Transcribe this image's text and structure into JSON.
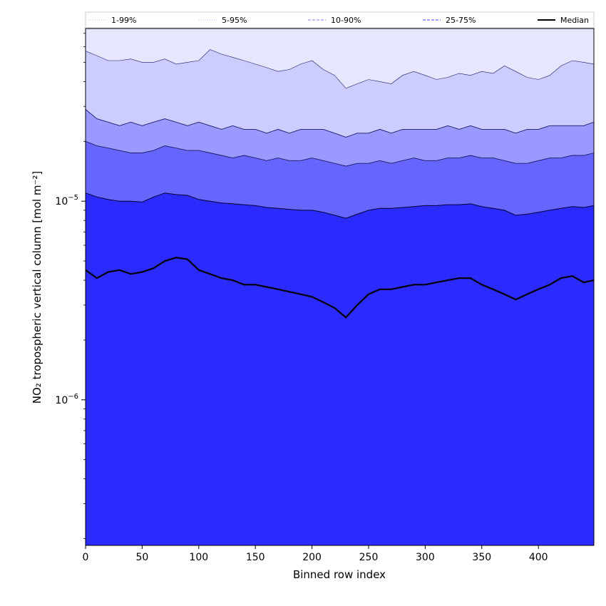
{
  "chart_data": {
    "type": "area",
    "xlabel": "Binned row index",
    "ylabel": "NO₂ tropospheric vertical column [mol m⁻²]",
    "xlim": [
      0,
      449
    ],
    "ylim": [
      1.85e-07,
      7.4e-05
    ],
    "yscale": "log",
    "grid": false,
    "legend_position": "top",
    "x_ticks": [
      0,
      50,
      100,
      150,
      200,
      250,
      300,
      350,
      400
    ],
    "x_tick_labels": [
      "0",
      "50",
      "100",
      "150",
      "200",
      "250",
      "300",
      "350",
      "400"
    ],
    "y_ticks": [
      1e-06,
      1e-05
    ],
    "y_tick_labels": [
      {
        "base": "10",
        "exp": "−6"
      },
      {
        "base": "10",
        "exp": "−5"
      }
    ],
    "legend": [
      {
        "label": "1-99%",
        "color": "#e6e6ff",
        "style": "dotted"
      },
      {
        "label": "5-95%",
        "color": "#ccccff",
        "style": "dotted"
      },
      {
        "label": "10-90%",
        "color": "#9999ff",
        "style": "dashed"
      },
      {
        "label": "25-75%",
        "color": "#6666ff",
        "style": "dashed"
      },
      {
        "label": "Median",
        "color": "#000000",
        "style": "solid"
      }
    ],
    "x": [
      0,
      10,
      20,
      30,
      40,
      50,
      60,
      70,
      80,
      90,
      100,
      110,
      120,
      130,
      140,
      150,
      160,
      170,
      180,
      190,
      200,
      210,
      220,
      230,
      240,
      250,
      260,
      270,
      280,
      290,
      300,
      310,
      320,
      330,
      340,
      350,
      360,
      370,
      380,
      390,
      400,
      410,
      420,
      430,
      440,
      449
    ],
    "series": [
      {
        "name": "1-99%",
        "color": "#e6e6ff",
        "values_low": [
          1.85e-07,
          1.85e-07,
          1.85e-07,
          1.85e-07,
          1.85e-07,
          1.85e-07,
          1.85e-07,
          1.85e-07,
          1.85e-07,
          1.85e-07,
          1.85e-07,
          1.85e-07,
          1.85e-07,
          1.85e-07,
          1.85e-07,
          1.85e-07,
          1.85e-07,
          1.85e-07,
          1.85e-07,
          1.85e-07,
          1.85e-07,
          1.85e-07,
          1.85e-07,
          1.85e-07,
          1.85e-07,
          1.85e-07,
          1.85e-07,
          1.85e-07,
          1.85e-07,
          1.85e-07,
          1.85e-07,
          1.85e-07,
          1.85e-07,
          1.85e-07,
          1.85e-07,
          1.85e-07,
          1.85e-07,
          1.85e-07,
          1.85e-07,
          1.85e-07,
          1.85e-07,
          1.85e-07,
          1.85e-07,
          1.85e-07,
          1.85e-07,
          1.85e-07
        ],
        "values_high": [
          7.4e-05,
          7.4e-05,
          7.4e-05,
          7.4e-05,
          7.4e-05,
          7.4e-05,
          7.4e-05,
          7.4e-05,
          7.4e-05,
          7.4e-05,
          7.4e-05,
          7.4e-05,
          7.4e-05,
          7.4e-05,
          7.4e-05,
          7.4e-05,
          7.4e-05,
          7.4e-05,
          7.4e-05,
          7.4e-05,
          7.4e-05,
          7.4e-05,
          7.4e-05,
          7.4e-05,
          7.4e-05,
          7.4e-05,
          7.4e-05,
          7.4e-05,
          7.4e-05,
          7.4e-05,
          7.4e-05,
          7.4e-05,
          7.4e-05,
          7.4e-05,
          7.4e-05,
          7.4e-05,
          7.4e-05,
          7.4e-05,
          7.4e-05,
          7.4e-05,
          7.4e-05,
          7.4e-05,
          7.4e-05,
          7.4e-05,
          7.4e-05,
          7.4e-05
        ]
      },
      {
        "name": "5-95%",
        "color": "#ccccff",
        "values_low": [
          1.85e-07,
          1.85e-07,
          1.85e-07,
          1.85e-07,
          1.85e-07,
          1.85e-07,
          1.85e-07,
          1.85e-07,
          1.85e-07,
          1.85e-07,
          1.85e-07,
          1.85e-07,
          1.85e-07,
          1.85e-07,
          1.85e-07,
          1.85e-07,
          1.85e-07,
          1.85e-07,
          1.85e-07,
          1.85e-07,
          1.85e-07,
          1.85e-07,
          1.85e-07,
          1.85e-07,
          1.85e-07,
          1.85e-07,
          1.85e-07,
          1.85e-07,
          1.85e-07,
          1.85e-07,
          1.85e-07,
          1.85e-07,
          1.85e-07,
          1.85e-07,
          1.85e-07,
          1.85e-07,
          1.85e-07,
          1.85e-07,
          1.85e-07,
          1.85e-07,
          1.85e-07,
          1.85e-07,
          1.85e-07,
          1.85e-07,
          1.85e-07,
          1.85e-07
        ],
        "values_high": [
          5.7e-05,
          5.4e-05,
          5.1e-05,
          5.1e-05,
          5.2e-05,
          5e-05,
          5e-05,
          5.2e-05,
          4.9e-05,
          5e-05,
          5.1e-05,
          5.8e-05,
          5.5e-05,
          5.3e-05,
          5.1e-05,
          4.9e-05,
          4.7e-05,
          4.5e-05,
          4.6e-05,
          4.9e-05,
          5.1e-05,
          4.6e-05,
          4.3e-05,
          3.7e-05,
          3.9e-05,
          4.1e-05,
          4e-05,
          3.9e-05,
          4.3e-05,
          4.5e-05,
          4.3e-05,
          4.1e-05,
          4.2e-05,
          4.4e-05,
          4.3e-05,
          4.5e-05,
          4.4e-05,
          4.8e-05,
          4.5e-05,
          4.2e-05,
          4.1e-05,
          4.3e-05,
          4.8e-05,
          5.1e-05,
          5e-05,
          4.9e-05
        ]
      },
      {
        "name": "10-90%",
        "color": "#9999ff",
        "values_low": [
          1.85e-07,
          1.85e-07,
          1.85e-07,
          1.85e-07,
          1.85e-07,
          1.85e-07,
          1.85e-07,
          1.85e-07,
          1.85e-07,
          1.85e-07,
          1.85e-07,
          1.85e-07,
          1.85e-07,
          1.85e-07,
          1.85e-07,
          1.85e-07,
          1.85e-07,
          1.85e-07,
          1.85e-07,
          1.85e-07,
          1.85e-07,
          1.85e-07,
          1.85e-07,
          1.85e-07,
          1.85e-07,
          1.85e-07,
          1.85e-07,
          1.85e-07,
          1.85e-07,
          1.85e-07,
          1.85e-07,
          1.85e-07,
          1.85e-07,
          1.85e-07,
          1.85e-07,
          1.85e-07,
          1.85e-07,
          1.85e-07,
          1.85e-07,
          1.85e-07,
          1.85e-07,
          1.85e-07,
          1.85e-07,
          1.85e-07,
          1.85e-07,
          1.85e-07
        ],
        "values_high": [
          2.9e-05,
          2.6e-05,
          2.5e-05,
          2.4e-05,
          2.5e-05,
          2.4e-05,
          2.5e-05,
          2.6e-05,
          2.5e-05,
          2.4e-05,
          2.5e-05,
          2.4e-05,
          2.3e-05,
          2.4e-05,
          2.3e-05,
          2.3e-05,
          2.2e-05,
          2.3e-05,
          2.2e-05,
          2.3e-05,
          2.3e-05,
          2.3e-05,
          2.2e-05,
          2.1e-05,
          2.2e-05,
          2.2e-05,
          2.3e-05,
          2.2e-05,
          2.3e-05,
          2.3e-05,
          2.3e-05,
          2.3e-05,
          2.4e-05,
          2.3e-05,
          2.4e-05,
          2.3e-05,
          2.3e-05,
          2.3e-05,
          2.2e-05,
          2.3e-05,
          2.3e-05,
          2.4e-05,
          2.4e-05,
          2.4e-05,
          2.4e-05,
          2.5e-05
        ]
      },
      {
        "name": "25-75%",
        "color": "#6666ff",
        "values_low": [
          1.85e-07,
          1.85e-07,
          1.85e-07,
          1.85e-07,
          1.85e-07,
          1.85e-07,
          1.85e-07,
          1.85e-07,
          1.85e-07,
          1.85e-07,
          1.85e-07,
          1.85e-07,
          1.85e-07,
          1.85e-07,
          1.85e-07,
          1.85e-07,
          1.85e-07,
          1.85e-07,
          1.85e-07,
          1.85e-07,
          1.85e-07,
          1.85e-07,
          1.85e-07,
          1.85e-07,
          1.85e-07,
          1.85e-07,
          1.85e-07,
          1.85e-07,
          1.85e-07,
          1.85e-07,
          1.85e-07,
          1.85e-07,
          1.85e-07,
          1.85e-07,
          1.85e-07,
          1.85e-07,
          1.85e-07,
          1.85e-07,
          1.85e-07,
          1.85e-07,
          1.85e-07,
          1.85e-07,
          1.85e-07,
          1.85e-07,
          1.85e-07,
          1.85e-07
        ],
        "values_high": [
          2e-05,
          1.9e-05,
          1.85e-05,
          1.8e-05,
          1.75e-05,
          1.75e-05,
          1.8e-05,
          1.9e-05,
          1.85e-05,
          1.8e-05,
          1.8e-05,
          1.75e-05,
          1.7e-05,
          1.65e-05,
          1.7e-05,
          1.65e-05,
          1.6e-05,
          1.65e-05,
          1.6e-05,
          1.6e-05,
          1.65e-05,
          1.6e-05,
          1.55e-05,
          1.5e-05,
          1.55e-05,
          1.55e-05,
          1.6e-05,
          1.55e-05,
          1.6e-05,
          1.65e-05,
          1.6e-05,
          1.6e-05,
          1.65e-05,
          1.65e-05,
          1.7e-05,
          1.65e-05,
          1.65e-05,
          1.6e-05,
          1.55e-05,
          1.55e-05,
          1.6e-05,
          1.65e-05,
          1.65e-05,
          1.7e-05,
          1.7e-05,
          1.75e-05
        ]
      },
      {
        "name": "Median",
        "color": "#000000",
        "values": [
          4.5e-06,
          4.1e-06,
          4.4e-06,
          4.5e-06,
          4.3e-06,
          4.4e-06,
          4.6e-06,
          5e-06,
          5.2e-06,
          5.1e-06,
          4.5e-06,
          4.3e-06,
          4.1e-06,
          4e-06,
          3.8e-06,
          3.8e-06,
          3.7e-06,
          3.6e-06,
          3.5e-06,
          3.4e-06,
          3.3e-06,
          3.1e-06,
          2.9e-06,
          2.6e-06,
          3e-06,
          3.4e-06,
          3.6e-06,
          3.6e-06,
          3.7e-06,
          3.8e-06,
          3.8e-06,
          3.9e-06,
          4e-06,
          4.1e-06,
          4.1e-06,
          3.8e-06,
          3.6e-06,
          3.4e-06,
          3.2e-06,
          3.4e-06,
          3.6e-06,
          3.8e-06,
          4.1e-06,
          4.2e-06,
          3.9e-06,
          4e-06
        ]
      }
    ],
    "quartile_lines": [
      {
        "name": "25-75% low",
        "values": [
          1.1e-05,
          1.05e-05,
          1.02e-05,
          1e-05,
          1e-05,
          9.9e-06,
          1.05e-05,
          1.1e-05,
          1.08e-05,
          1.07e-05,
          1.02e-05,
          1e-05,
          9.8e-06,
          9.7e-06,
          9.6e-06,
          9.5e-06,
          9.3e-06,
          9.2e-06,
          9.1e-06,
          9e-06,
          9e-06,
          8.8e-06,
          8.5e-06,
          8.2e-06,
          8.6e-06,
          9e-06,
          9.2e-06,
          9.2e-06,
          9.3e-06,
          9.4e-06,
          9.5e-06,
          9.5e-06,
          9.6e-06,
          9.6e-06,
          9.7e-06,
          9.4e-06,
          9.2e-06,
          9e-06,
          8.5e-06,
          8.6e-06,
          8.8e-06,
          9e-06,
          9.2e-06,
          9.4e-06,
          9.3e-06,
          9.5e-06
        ]
      }
    ]
  }
}
